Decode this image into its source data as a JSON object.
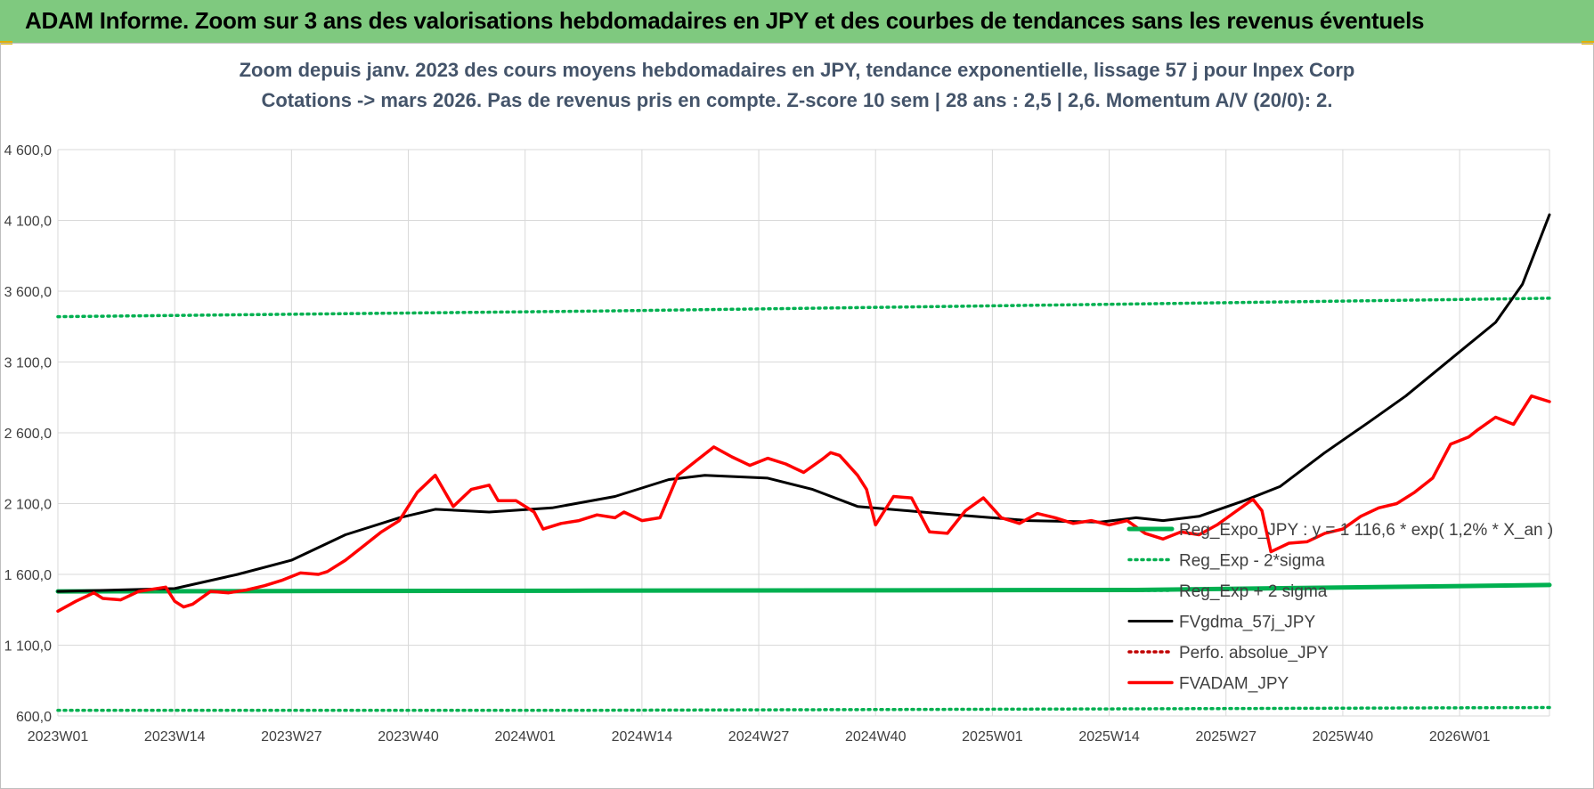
{
  "header": {
    "title": "ADAM Informe. Zoom sur 3 ans des valorisations hebdomadaires en JPY et des courbes de tendances sans les revenus éventuels"
  },
  "colors": {
    "header_band": "#7fc97f",
    "green": "#00b050",
    "black": "#000000",
    "red": "#ff0000",
    "darkred": "#c00000",
    "grid": "#d9d9d9"
  },
  "chart_data": {
    "type": "line",
    "title": "Zoom depuis janv. 2023 des cours moyens hebdomadaires en JPY, tendance exponentielle, lissage 57 j pour Inpex Corp",
    "subtitle": "Cotations -> mars 2026. Pas de revenus pris en compte. Z-score 10 sem | 28 ans : 2,5 | 2,6. Momentum A/V (20/0): 2.",
    "xlabel": "",
    "ylabel": "",
    "ylim": [
      600,
      4600
    ],
    "y_ticks": [
      "600,0",
      "1 100,0",
      "1 600,0",
      "2 100,0",
      "2 600,0",
      "3 100,0",
      "3 600,0",
      "4 100,0",
      "4 600,0"
    ],
    "x_ticks": [
      "2023W01",
      "2023W14",
      "2023W27",
      "2023W40",
      "2024W01",
      "2024W14",
      "2024W27",
      "2024W40",
      "2025W01",
      "2025W14",
      "2025W27",
      "2025W40",
      "2026W01"
    ],
    "grid": true,
    "legend_position": "bottom-right",
    "n_weeks": 167,
    "series": [
      {
        "name": "Reg_Expo_JPY : y = 1 116,6 * exp( 1,2% *  X_an )",
        "style": "solid-thick",
        "color": "#00b050",
        "points": [
          [
            0,
            1480
          ],
          [
            60,
            1485
          ],
          [
            120,
            1490
          ],
          [
            166,
            1525
          ]
        ]
      },
      {
        "name": "Reg_Exp - 2*sigma",
        "style": "dotted",
        "color": "#00b050",
        "points": [
          [
            0,
            640
          ],
          [
            60,
            640
          ],
          [
            120,
            650
          ],
          [
            166,
            660
          ]
        ]
      },
      {
        "name": "Reg_Exp + 2 sigma",
        "style": "dotted",
        "color": "#00b050",
        "points": [
          [
            0,
            3420
          ],
          [
            60,
            3460
          ],
          [
            120,
            3510
          ],
          [
            166,
            3550
          ]
        ]
      },
      {
        "name": "FVgdma_57j_JPY",
        "style": "solid",
        "color": "#000000",
        "points": [
          [
            0,
            1480
          ],
          [
            13,
            1500
          ],
          [
            20,
            1600
          ],
          [
            26,
            1700
          ],
          [
            32,
            1880
          ],
          [
            38,
            2000
          ],
          [
            42,
            2060
          ],
          [
            48,
            2040
          ],
          [
            55,
            2070
          ],
          [
            62,
            2150
          ],
          [
            68,
            2270
          ],
          [
            72,
            2300
          ],
          [
            79,
            2280
          ],
          [
            84,
            2200
          ],
          [
            89,
            2080
          ],
          [
            98,
            2030
          ],
          [
            108,
            1980
          ],
          [
            116,
            1970
          ],
          [
            120,
            2000
          ],
          [
            123,
            1980
          ],
          [
            127,
            2010
          ],
          [
            132,
            2120
          ],
          [
            136,
            2220
          ],
          [
            141,
            2460
          ],
          [
            146,
            2680
          ],
          [
            150,
            2860
          ],
          [
            155,
            3120
          ],
          [
            160,
            3380
          ],
          [
            163,
            3650
          ],
          [
            166,
            4140
          ]
        ]
      },
      {
        "name": "Perfo. absolue_JPY",
        "style": "dotted",
        "color": "#c00000",
        "points": []
      },
      {
        "name": "FVADAM_JPY",
        "style": "solid-thick",
        "color": "#ff0000",
        "points": [
          [
            0,
            1340
          ],
          [
            2,
            1410
          ],
          [
            4,
            1470
          ],
          [
            5,
            1430
          ],
          [
            7,
            1420
          ],
          [
            9,
            1480
          ],
          [
            12,
            1510
          ],
          [
            13,
            1410
          ],
          [
            14,
            1370
          ],
          [
            15,
            1390
          ],
          [
            17,
            1480
          ],
          [
            19,
            1470
          ],
          [
            21,
            1490
          ],
          [
            23,
            1520
          ],
          [
            25,
            1560
          ],
          [
            27,
            1610
          ],
          [
            29,
            1600
          ],
          [
            30,
            1620
          ],
          [
            32,
            1700
          ],
          [
            34,
            1800
          ],
          [
            36,
            1900
          ],
          [
            38,
            1980
          ],
          [
            40,
            2180
          ],
          [
            42,
            2300
          ],
          [
            44,
            2080
          ],
          [
            46,
            2200
          ],
          [
            48,
            2230
          ],
          [
            49,
            2120
          ],
          [
            51,
            2120
          ],
          [
            53,
            2040
          ],
          [
            54,
            1920
          ],
          [
            56,
            1960
          ],
          [
            58,
            1980
          ],
          [
            60,
            2020
          ],
          [
            62,
            2000
          ],
          [
            63,
            2040
          ],
          [
            65,
            1980
          ],
          [
            67,
            2000
          ],
          [
            69,
            2300
          ],
          [
            71,
            2400
          ],
          [
            73,
            2500
          ],
          [
            75,
            2430
          ],
          [
            77,
            2370
          ],
          [
            79,
            2420
          ],
          [
            81,
            2380
          ],
          [
            83,
            2320
          ],
          [
            85,
            2410
          ],
          [
            86,
            2460
          ],
          [
            87,
            2440
          ],
          [
            89,
            2300
          ],
          [
            90,
            2200
          ],
          [
            91,
            1950
          ],
          [
            93,
            2150
          ],
          [
            95,
            2140
          ],
          [
            97,
            1900
          ],
          [
            99,
            1890
          ],
          [
            101,
            2050
          ],
          [
            103,
            2140
          ],
          [
            105,
            2000
          ],
          [
            107,
            1960
          ],
          [
            109,
            2030
          ],
          [
            111,
            2000
          ],
          [
            113,
            1960
          ],
          [
            115,
            1980
          ],
          [
            117,
            1950
          ],
          [
            119,
            1980
          ],
          [
            121,
            1890
          ],
          [
            123,
            1850
          ],
          [
            125,
            1900
          ],
          [
            127,
            1880
          ],
          [
            129,
            1950
          ],
          [
            131,
            2040
          ],
          [
            133,
            2130
          ],
          [
            134,
            2050
          ],
          [
            135,
            1760
          ],
          [
            137,
            1820
          ],
          [
            139,
            1830
          ],
          [
            141,
            1890
          ],
          [
            143,
            1920
          ],
          [
            145,
            2010
          ],
          [
            147,
            2070
          ],
          [
            149,
            2100
          ],
          [
            151,
            2180
          ],
          [
            153,
            2280
          ],
          [
            155,
            2520
          ],
          [
            157,
            2570
          ],
          [
            158,
            2620
          ],
          [
            160,
            2710
          ],
          [
            162,
            2660
          ],
          [
            164,
            2860
          ],
          [
            166,
            2820
          ]
        ]
      }
    ]
  }
}
